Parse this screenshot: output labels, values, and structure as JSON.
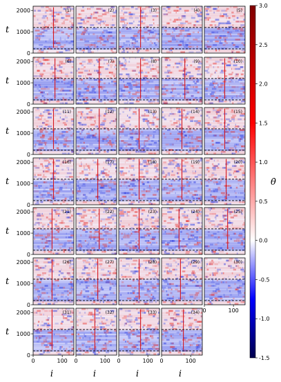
{
  "chart_data": {
    "type": "heatmap",
    "layout": {
      "rows": 7,
      "cols": 5
    },
    "panels": [
      "(1)",
      "(2)",
      "(3)",
      "(4)",
      "(5)",
      "(6)",
      "(7)",
      "(8)",
      "(9)",
      "(10)",
      "(11)",
      "(12)",
      "(13)",
      "(14)",
      "(15)",
      "(16)",
      "(17)",
      "(18)",
      "(19)",
      "(20)",
      "(21)",
      "(22)",
      "(23)",
      "(24)",
      "(25)",
      "(26)",
      "(27)",
      "(28)",
      "(29)",
      "(30)",
      "(31)",
      "(32)",
      "(33)",
      "(34)"
    ],
    "xlabel": "i",
    "ylabel": "t",
    "xlim": [
      0,
      140
    ],
    "ylim": [
      0,
      2200
    ],
    "x_ticks": [
      "0",
      "100"
    ],
    "y_ticks": [
      "0",
      "1000",
      "2000"
    ],
    "dashed_lines_t": [
      1200,
      200
    ],
    "colorbar": {
      "label": "θ̇",
      "min": -1.5,
      "max": 3.0,
      "ticks": [
        "3.0",
        "2.5",
        "2.0",
        "1.5",
        "1.0",
        "0.5",
        "0.0",
        "-0.5",
        "-1.0",
        "-1.5"
      ],
      "colormap": "seismic"
    },
    "red_line_i": {
      "1": 70,
      "3": 75,
      "6": 75,
      "7": 80,
      "8": 75,
      "9": 80,
      "10": 70,
      "11": 70,
      "12": 80,
      "13": 70,
      "14": 70,
      "15": 70,
      "16": 70,
      "17": 75,
      "18": 70,
      "19": 70,
      "20": 75,
      "21": 65,
      "22": 80,
      "23": 70,
      "24": 60,
      "25": 80,
      "26": 65,
      "27": 75,
      "28": 70,
      "29": 65,
      "31": 65,
      "32": 65,
      "33": 75,
      "34": 75
    },
    "colors": {
      "positive": "#e8322e",
      "negative": "#2a3ae0",
      "neutral": "#f4f4ff",
      "dash": "#222222",
      "frame": "#000000"
    }
  }
}
